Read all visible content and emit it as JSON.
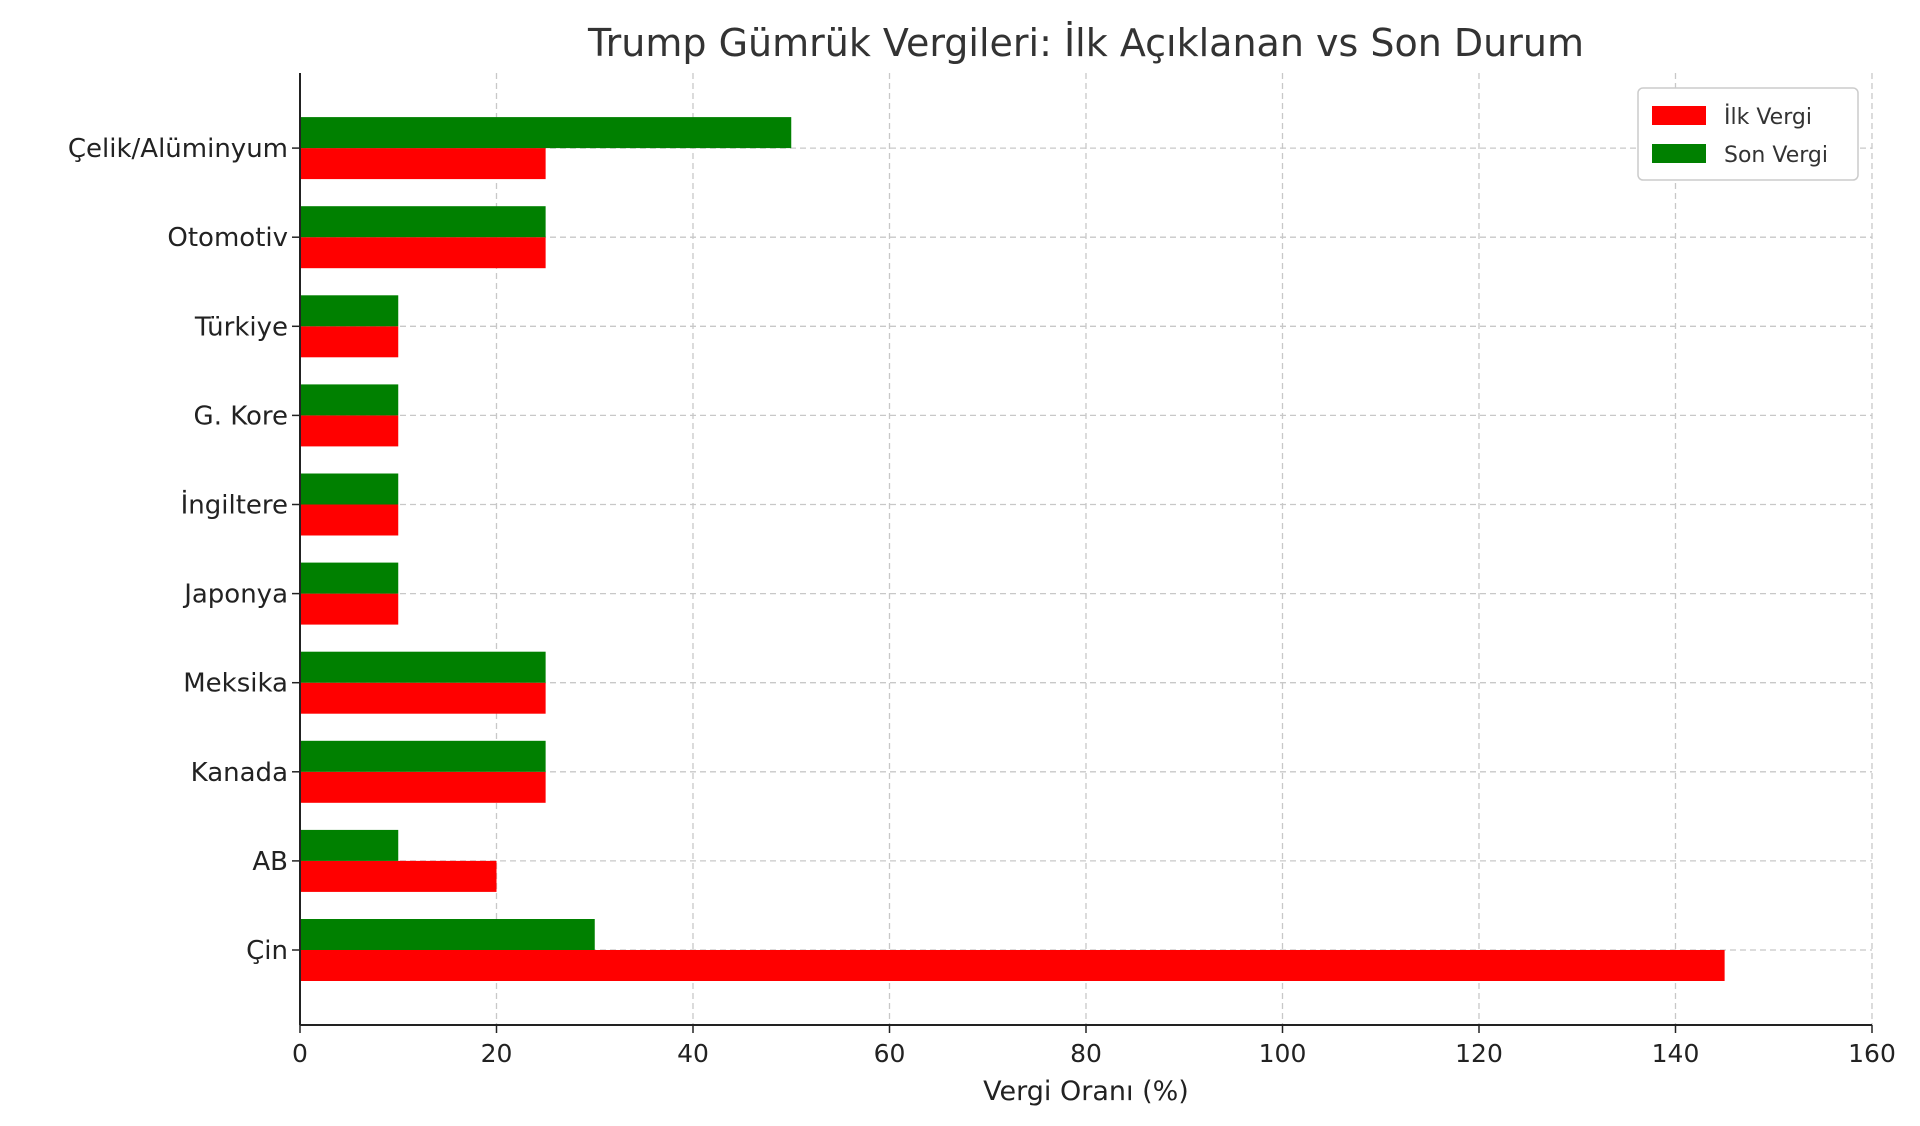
{
  "chart_data": {
    "type": "bar",
    "orientation": "horizontal",
    "title": "Trump Gümrük Vergileri: İlk Açıklanan vs Son Durum",
    "xlabel": "Vergi Oranı (%)",
    "ylabel": "",
    "xlim": [
      0,
      160
    ],
    "xticks": [
      0,
      20,
      40,
      60,
      80,
      100,
      120,
      140,
      160
    ],
    "grid": true,
    "legend_position": "top-right",
    "categories": [
      "Çin",
      "AB",
      "Kanada",
      "Meksika",
      "Japonya",
      "İngiltere",
      "G. Kore",
      "Türkiye",
      "Otomotiv",
      "Çelik/Alüminyum"
    ],
    "series": [
      {
        "name": "İlk Vergi",
        "color": "#ff0000",
        "values": [
          145,
          20,
          25,
          25,
          10,
          10,
          10,
          10,
          25,
          25
        ]
      },
      {
        "name": "Son Vergi",
        "color": "#008000",
        "values": [
          30,
          10,
          25,
          25,
          10,
          10,
          10,
          10,
          25,
          50
        ]
      }
    ]
  }
}
